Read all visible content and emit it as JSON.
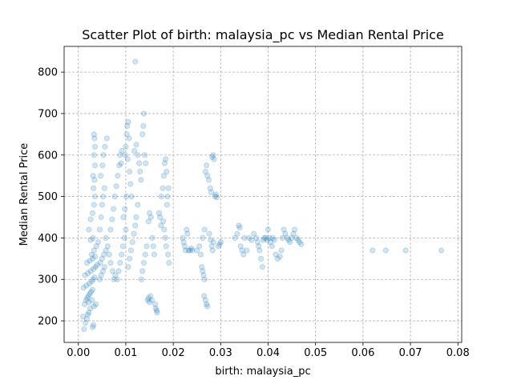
{
  "chart_data": {
    "type": "scatter",
    "title": "Scatter Plot of birth: malaysia_pc vs Median Rental Price",
    "xlabel": "birth: malaysia_pc",
    "ylabel": "Median Rental Price",
    "xlim": [
      -0.003,
      0.0808
    ],
    "ylim": [
      148,
      862
    ],
    "xticks": [
      0.0,
      0.01,
      0.02,
      0.03,
      0.04,
      0.05,
      0.06,
      0.07,
      0.08
    ],
    "xtick_labels": [
      "0.00",
      "0.01",
      "0.02",
      "0.03",
      "0.04",
      "0.05",
      "0.06",
      "0.07",
      "0.08"
    ],
    "yticks": [
      200,
      300,
      400,
      500,
      600,
      700,
      800
    ],
    "ytick_labels": [
      "200",
      "300",
      "400",
      "500",
      "600",
      "700",
      "800"
    ],
    "grid": true,
    "color": "#1f77b4",
    "alpha": 0.2,
    "points": [
      [
        0.0012,
        180
      ],
      [
        0.0015,
        195
      ],
      [
        0.0018,
        205
      ],
      [
        0.001,
        210
      ],
      [
        0.002,
        215
      ],
      [
        0.0022,
        220
      ],
      [
        0.0025,
        230
      ],
      [
        0.0013,
        240
      ],
      [
        0.0016,
        250
      ],
      [
        0.0019,
        255
      ],
      [
        0.0021,
        260
      ],
      [
        0.0024,
        265
      ],
      [
        0.0027,
        270
      ],
      [
        0.003,
        275
      ],
      [
        0.0011,
        280
      ],
      [
        0.0017,
        285
      ],
      [
        0.0023,
        290
      ],
      [
        0.0028,
        295
      ],
      [
        0.0031,
        300
      ],
      [
        0.0034,
        305
      ],
      [
        0.0014,
        310
      ],
      [
        0.002,
        315
      ],
      [
        0.0026,
        320
      ],
      [
        0.0032,
        325
      ],
      [
        0.0036,
        330
      ],
      [
        0.004,
        335
      ],
      [
        0.0018,
        340
      ],
      [
        0.0024,
        345
      ],
      [
        0.003,
        350
      ],
      [
        0.0035,
        355
      ],
      [
        0.0028,
        360
      ],
      [
        0.0033,
        370
      ],
      [
        0.0038,
        380
      ],
      [
        0.0042,
        390
      ],
      [
        0.0026,
        395
      ],
      [
        0.0031,
        400
      ],
      [
        0.0022,
        245
      ],
      [
        0.0029,
        250
      ],
      [
        0.0033,
        235
      ],
      [
        0.0037,
        240
      ],
      [
        0.003,
        185
      ],
      [
        0.0032,
        190
      ],
      [
        0.0045,
        300
      ],
      [
        0.0048,
        310
      ],
      [
        0.0052,
        320
      ],
      [
        0.0055,
        330
      ],
      [
        0.0046,
        340
      ],
      [
        0.005,
        350
      ],
      [
        0.0054,
        360
      ],
      [
        0.0058,
        370
      ],
      [
        0.0022,
        420
      ],
      [
        0.0026,
        445
      ],
      [
        0.003,
        460
      ],
      [
        0.0033,
        480
      ],
      [
        0.0035,
        500
      ],
      [
        0.0032,
        520
      ],
      [
        0.0034,
        540
      ],
      [
        0.0031,
        550
      ],
      [
        0.0035,
        575
      ],
      [
        0.0033,
        600
      ],
      [
        0.0035,
        620
      ],
      [
        0.0034,
        640
      ],
      [
        0.0033,
        650
      ],
      [
        0.0045,
        420
      ],
      [
        0.0048,
        450
      ],
      [
        0.005,
        480
      ],
      [
        0.0052,
        500
      ],
      [
        0.0055,
        520
      ],
      [
        0.0047,
        550
      ],
      [
        0.0051,
        575
      ],
      [
        0.0053,
        600
      ],
      [
        0.0056,
        620
      ],
      [
        0.006,
        640
      ],
      [
        0.0058,
        400
      ],
      [
        0.0062,
        380
      ],
      [
        0.0065,
        360
      ],
      [
        0.0068,
        340
      ],
      [
        0.0072,
        320
      ],
      [
        0.0075,
        300
      ],
      [
        0.0078,
        310
      ],
      [
        0.0068,
        420
      ],
      [
        0.0071,
        445
      ],
      [
        0.0074,
        470
      ],
      [
        0.0077,
        500
      ],
      [
        0.008,
        525
      ],
      [
        0.0083,
        550
      ],
      [
        0.0086,
        575
      ],
      [
        0.0088,
        600
      ],
      [
        0.009,
        580
      ],
      [
        0.0092,
        610
      ],
      [
        0.0082,
        300
      ],
      [
        0.0085,
        320
      ],
      [
        0.0088,
        340
      ],
      [
        0.0091,
        360
      ],
      [
        0.0094,
        380
      ],
      [
        0.0097,
        400
      ],
      [
        0.01,
        420
      ],
      [
        0.0095,
        450
      ],
      [
        0.0098,
        470
      ],
      [
        0.0101,
        500
      ],
      [
        0.0099,
        600
      ],
      [
        0.01,
        620
      ],
      [
        0.0102,
        650
      ],
      [
        0.0103,
        670
      ],
      [
        0.0105,
        680
      ],
      [
        0.0107,
        640
      ],
      [
        0.0104,
        590
      ],
      [
        0.0108,
        560
      ],
      [
        0.011,
        530
      ],
      [
        0.0112,
        500
      ],
      [
        0.0105,
        330
      ],
      [
        0.0108,
        350
      ],
      [
        0.0111,
        370
      ],
      [
        0.0114,
        390
      ],
      [
        0.0117,
        410
      ],
      [
        0.012,
        430
      ],
      [
        0.0122,
        450
      ],
      [
        0.0125,
        480
      ],
      [
        0.0118,
        610
      ],
      [
        0.0122,
        625
      ],
      [
        0.012,
        825
      ],
      [
        0.0125,
        600
      ],
      [
        0.0128,
        580
      ],
      [
        0.013,
        560
      ],
      [
        0.0132,
        540
      ],
      [
        0.0135,
        650
      ],
      [
        0.0137,
        670
      ],
      [
        0.0138,
        700
      ],
      [
        0.014,
        600
      ],
      [
        0.0142,
        580
      ],
      [
        0.0133,
        300
      ],
      [
        0.0135,
        320
      ],
      [
        0.0138,
        340
      ],
      [
        0.0141,
        360
      ],
      [
        0.0144,
        380
      ],
      [
        0.0146,
        250
      ],
      [
        0.0148,
        255
      ],
      [
        0.015,
        245
      ],
      [
        0.0152,
        260
      ],
      [
        0.0155,
        250
      ],
      [
        0.0148,
        440
      ],
      [
        0.015,
        460
      ],
      [
        0.0153,
        450
      ],
      [
        0.0156,
        400
      ],
      [
        0.0158,
        380
      ],
      [
        0.016,
        360
      ],
      [
        0.0162,
        240
      ],
      [
        0.0163,
        230
      ],
      [
        0.0165,
        225
      ],
      [
        0.0166,
        220
      ],
      [
        0.0175,
        500
      ],
      [
        0.0178,
        520
      ],
      [
        0.018,
        550
      ],
      [
        0.0182,
        580
      ],
      [
        0.0184,
        590
      ],
      [
        0.0186,
        560
      ],
      [
        0.0179,
        440
      ],
      [
        0.0181,
        420
      ],
      [
        0.0183,
        400
      ],
      [
        0.0185,
        380
      ],
      [
        0.017,
        460
      ],
      [
        0.0172,
        450
      ],
      [
        0.0174,
        430
      ],
      [
        0.0188,
        500
      ],
      [
        0.019,
        520
      ],
      [
        0.0187,
        480
      ],
      [
        0.0189,
        360
      ],
      [
        0.0191,
        340
      ],
      [
        0.022,
        400
      ],
      [
        0.0222,
        390
      ],
      [
        0.0224,
        380
      ],
      [
        0.0226,
        370
      ],
      [
        0.0228,
        420
      ],
      [
        0.023,
        410
      ],
      [
        0.0232,
        370
      ],
      [
        0.0235,
        370
      ],
      [
        0.0238,
        375
      ],
      [
        0.024,
        370
      ],
      [
        0.025,
        370
      ],
      [
        0.0255,
        380
      ],
      [
        0.0258,
        360
      ],
      [
        0.026,
        330
      ],
      [
        0.0262,
        320
      ],
      [
        0.0264,
        310
      ],
      [
        0.0266,
        300
      ],
      [
        0.0265,
        260
      ],
      [
        0.0268,
        250
      ],
      [
        0.027,
        240
      ],
      [
        0.0272,
        235
      ],
      [
        0.0262,
        400
      ],
      [
        0.0266,
        420
      ],
      [
        0.0268,
        560
      ],
      [
        0.027,
        575
      ],
      [
        0.0272,
        550
      ],
      [
        0.0275,
        540
      ],
      [
        0.0278,
        520
      ],
      [
        0.028,
        510
      ],
      [
        0.0282,
        595
      ],
      [
        0.0284,
        600
      ],
      [
        0.0286,
        590
      ],
      [
        0.0288,
        500
      ],
      [
        0.029,
        505
      ],
      [
        0.0292,
        498
      ],
      [
        0.0295,
        380
      ],
      [
        0.0298,
        385
      ],
      [
        0.03,
        390
      ],
      [
        0.0276,
        410
      ],
      [
        0.0279,
        395
      ],
      [
        0.0281,
        380
      ],
      [
        0.0283,
        370
      ],
      [
        0.0285,
        390
      ],
      [
        0.033,
        400
      ],
      [
        0.0335,
        410
      ],
      [
        0.0338,
        430
      ],
      [
        0.034,
        425
      ],
      [
        0.0342,
        380
      ],
      [
        0.0345,
        370
      ],
      [
        0.0348,
        360
      ],
      [
        0.035,
        400
      ],
      [
        0.0355,
        370
      ],
      [
        0.036,
        400
      ],
      [
        0.0365,
        395
      ],
      [
        0.037,
        410
      ],
      [
        0.0375,
        400
      ],
      [
        0.0378,
        390
      ],
      [
        0.038,
        380
      ],
      [
        0.0382,
        370
      ],
      [
        0.0385,
        350
      ],
      [
        0.0388,
        330
      ],
      [
        0.039,
        395
      ],
      [
        0.0392,
        400
      ],
      [
        0.0395,
        400
      ],
      [
        0.0398,
        395
      ],
      [
        0.04,
        420
      ],
      [
        0.0403,
        400
      ],
      [
        0.0405,
        390
      ],
      [
        0.0408,
        380
      ],
      [
        0.041,
        400
      ],
      [
        0.0413,
        395
      ],
      [
        0.0416,
        360
      ],
      [
        0.042,
        350
      ],
      [
        0.0425,
        355
      ],
      [
        0.0428,
        370
      ],
      [
        0.043,
        400
      ],
      [
        0.0433,
        420
      ],
      [
        0.0436,
        410
      ],
      [
        0.044,
        400
      ],
      [
        0.0443,
        395
      ],
      [
        0.0446,
        390
      ],
      [
        0.045,
        400
      ],
      [
        0.0453,
        410
      ],
      [
        0.0456,
        420
      ],
      [
        0.046,
        400
      ],
      [
        0.0463,
        395
      ],
      [
        0.0466,
        390
      ],
      [
        0.047,
        385
      ],
      [
        0.062,
        370
      ],
      [
        0.0648,
        370
      ],
      [
        0.069,
        370
      ],
      [
        0.0765,
        370
      ]
    ]
  }
}
